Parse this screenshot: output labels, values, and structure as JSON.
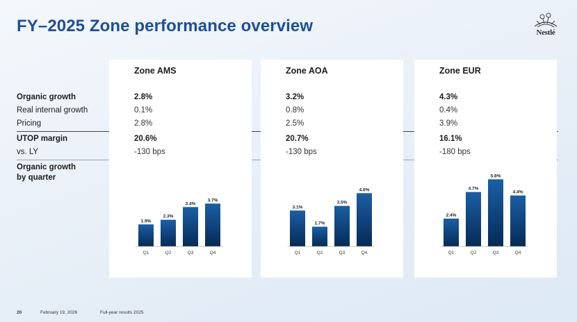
{
  "title": "FY–2025 Zone performance overview",
  "brand": "Nestlé",
  "row_labels": {
    "organic_growth": "Organic growth",
    "rig": "Real internal growth",
    "pricing": "Pricing",
    "utop": "UTOP margin",
    "vs_ly": "vs. LY",
    "og_quarter_line1": "Organic growth",
    "og_quarter_line2": "by quarter"
  },
  "zones": [
    {
      "name": "Zone AMS",
      "organic_growth": "2.8%",
      "rig": "0.1%",
      "pricing": "2.8%",
      "utop": "20.6%",
      "vs_ly": "-130 bps"
    },
    {
      "name": "Zone AOA",
      "organic_growth": "3.2%",
      "rig": "0.8%",
      "pricing": "2.5%",
      "utop": "20.7%",
      "vs_ly": "-130 bps"
    },
    {
      "name": "Zone EUR",
      "organic_growth": "4.3%",
      "rig": "0.4%",
      "pricing": "3.9%",
      "utop": "16.1%",
      "vs_ly": "-180 bps"
    }
  ],
  "chart_data": [
    {
      "type": "bar",
      "title": "Zone AMS organic growth by quarter",
      "categories": [
        "Q1",
        "Q2",
        "Q3",
        "Q4"
      ],
      "values": [
        1.9,
        2.3,
        3.4,
        3.7
      ],
      "labels": [
        "1.9%",
        "2.3%",
        "3.4%",
        "3.7%"
      ],
      "unit": "%",
      "ylim": [
        0,
        6
      ]
    },
    {
      "type": "bar",
      "title": "Zone AOA organic growth by quarter",
      "categories": [
        "Q1",
        "Q2",
        "Q3",
        "Q4"
      ],
      "values": [
        3.1,
        1.7,
        3.5,
        4.6
      ],
      "labels": [
        "3.1%",
        "1.7%",
        "3.5%",
        "4.6%"
      ],
      "unit": "%",
      "ylim": [
        0,
        6
      ]
    },
    {
      "type": "bar",
      "title": "Zone EUR organic growth by quarter",
      "categories": [
        "Q1",
        "Q2",
        "Q3",
        "Q4"
      ],
      "values": [
        2.4,
        4.7,
        5.8,
        4.4
      ],
      "labels": [
        "2.4%",
        "4.7%",
        "5.8%",
        "4.4%"
      ],
      "unit": "%",
      "ylim": [
        0,
        6
      ]
    }
  ],
  "footer": {
    "page": "20",
    "date": "February 19, 2026",
    "doc": "Full-year results 2025"
  },
  "colors": {
    "title": "#1b4f9c",
    "bar_top": "#1a5fa6",
    "bar_bottom": "#062a55"
  }
}
